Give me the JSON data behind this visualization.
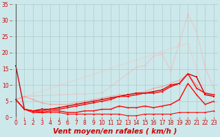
{
  "background_color": "#cce8ea",
  "grid_color": "#aacccc",
  "xlabel": "Vent moyen/en rafales ( km/h )",
  "xlim": [
    -0.5,
    23.5
  ],
  "ylim": [
    0,
    35
  ],
  "yticks": [
    0,
    5,
    10,
    15,
    20,
    25,
    30,
    35
  ],
  "xticks": [
    0,
    1,
    2,
    3,
    4,
    5,
    6,
    7,
    8,
    9,
    10,
    11,
    12,
    13,
    14,
    15,
    16,
    17,
    18,
    19,
    20,
    21,
    22,
    23
  ],
  "series": [
    {
      "x": [
        0,
        1,
        10,
        13,
        14,
        15,
        16,
        17,
        18,
        19,
        20,
        21,
        22,
        23
      ],
      "y": [
        5.5,
        6.5,
        7.5,
        13.5,
        15.5,
        16.0,
        19.0,
        19.5,
        14.5,
        23.0,
        32.0,
        26.5,
        15.5,
        9.0
      ],
      "color": "#ffaaaa",
      "marker": "o",
      "markersize": 1.5,
      "linewidth": 0.8,
      "alpha": 0.55
    },
    {
      "x": [
        0,
        20,
        21,
        22,
        23
      ],
      "y": [
        5.5,
        23.0,
        15.0,
        8.0,
        6.5
      ],
      "color": "#ffbbbb",
      "marker": "o",
      "markersize": 1.5,
      "linewidth": 0.8,
      "alpha": 0.55
    },
    {
      "x": [
        0,
        1,
        2,
        3,
        4,
        5,
        6,
        7,
        8,
        9,
        10,
        11,
        12,
        13,
        14,
        15,
        16,
        17,
        18,
        19,
        20,
        21,
        22,
        23
      ],
      "y": [
        5.5,
        6.5,
        5.5,
        4.5,
        4.0,
        4.0,
        4.0,
        4.5,
        5.0,
        5.5,
        6.0,
        6.5,
        7.0,
        7.0,
        7.5,
        8.0,
        9.0,
        9.5,
        10.5,
        11.5,
        13.5,
        10.0,
        7.0,
        7.0
      ],
      "color": "#ff8888",
      "marker": "o",
      "markersize": 1.5,
      "linewidth": 0.8,
      "alpha": 0.7
    },
    {
      "x": [
        0,
        1,
        2,
        3,
        4,
        5,
        6,
        7,
        8,
        9,
        10,
        11,
        12,
        13,
        14,
        15,
        16,
        17,
        18,
        19,
        20,
        21,
        22,
        23
      ],
      "y": [
        16.0,
        2.5,
        2.0,
        2.5,
        2.5,
        3.0,
        3.5,
        4.0,
        4.5,
        5.0,
        5.5,
        6.0,
        6.5,
        7.0,
        7.5,
        7.5,
        8.0,
        8.5,
        10.0,
        10.5,
        13.5,
        12.5,
        7.0,
        6.5
      ],
      "color": "#cc0000",
      "marker": "s",
      "markersize": 1.5,
      "linewidth": 1.0,
      "alpha": 1.0
    },
    {
      "x": [
        0,
        1,
        2,
        3,
        4,
        5,
        6,
        7,
        8,
        9,
        10,
        11,
        12,
        13,
        14,
        15,
        16,
        17,
        18,
        19,
        20,
        21,
        22,
        23
      ],
      "y": [
        5.5,
        2.5,
        2.0,
        2.0,
        2.5,
        2.5,
        3.0,
        3.5,
        4.0,
        4.5,
        5.0,
        5.5,
        6.5,
        6.5,
        7.0,
        7.5,
        7.5,
        8.0,
        9.5,
        10.5,
        13.5,
        9.0,
        7.5,
        7.0
      ],
      "color": "#ff0000",
      "marker": "o",
      "markersize": 1.5,
      "linewidth": 1.0,
      "alpha": 1.0
    },
    {
      "x": [
        0,
        1,
        2,
        3,
        4,
        5,
        6,
        7,
        8,
        9,
        10,
        11,
        12,
        13,
        14,
        15,
        16,
        17,
        18,
        19,
        20,
        21,
        22,
        23
      ],
      "y": [
        5.5,
        2.5,
        1.5,
        1.5,
        2.0,
        2.0,
        1.5,
        1.5,
        2.0,
        2.0,
        2.5,
        2.5,
        3.5,
        3.0,
        3.0,
        3.5,
        3.0,
        3.5,
        4.0,
        5.5,
        10.5,
        7.0,
        4.0,
        5.0
      ],
      "color": "#ff0000",
      "marker": "^",
      "markersize": 1.5,
      "linewidth": 1.0,
      "alpha": 1.0
    },
    {
      "x": [
        0,
        1,
        2,
        3,
        4,
        5,
        6,
        7,
        8,
        9,
        10,
        11,
        12,
        13,
        14,
        15,
        16,
        17,
        18,
        19,
        20,
        21,
        22,
        23
      ],
      "y": [
        5.5,
        2.5,
        2.0,
        1.5,
        1.5,
        1.5,
        1.0,
        1.0,
        1.0,
        1.0,
        1.0,
        1.0,
        1.0,
        0.5,
        0.5,
        1.0,
        1.0,
        1.0,
        1.0,
        1.5,
        1.5,
        1.5,
        1.5,
        2.0
      ],
      "color": "#ff0000",
      "marker": "o",
      "markersize": 1.5,
      "linewidth": 0.8,
      "alpha": 1.0
    }
  ],
  "tick_label_fontsize": 5.5,
  "xlabel_fontsize": 7.5,
  "tick_color": "#cc0000",
  "label_color": "#cc0000"
}
